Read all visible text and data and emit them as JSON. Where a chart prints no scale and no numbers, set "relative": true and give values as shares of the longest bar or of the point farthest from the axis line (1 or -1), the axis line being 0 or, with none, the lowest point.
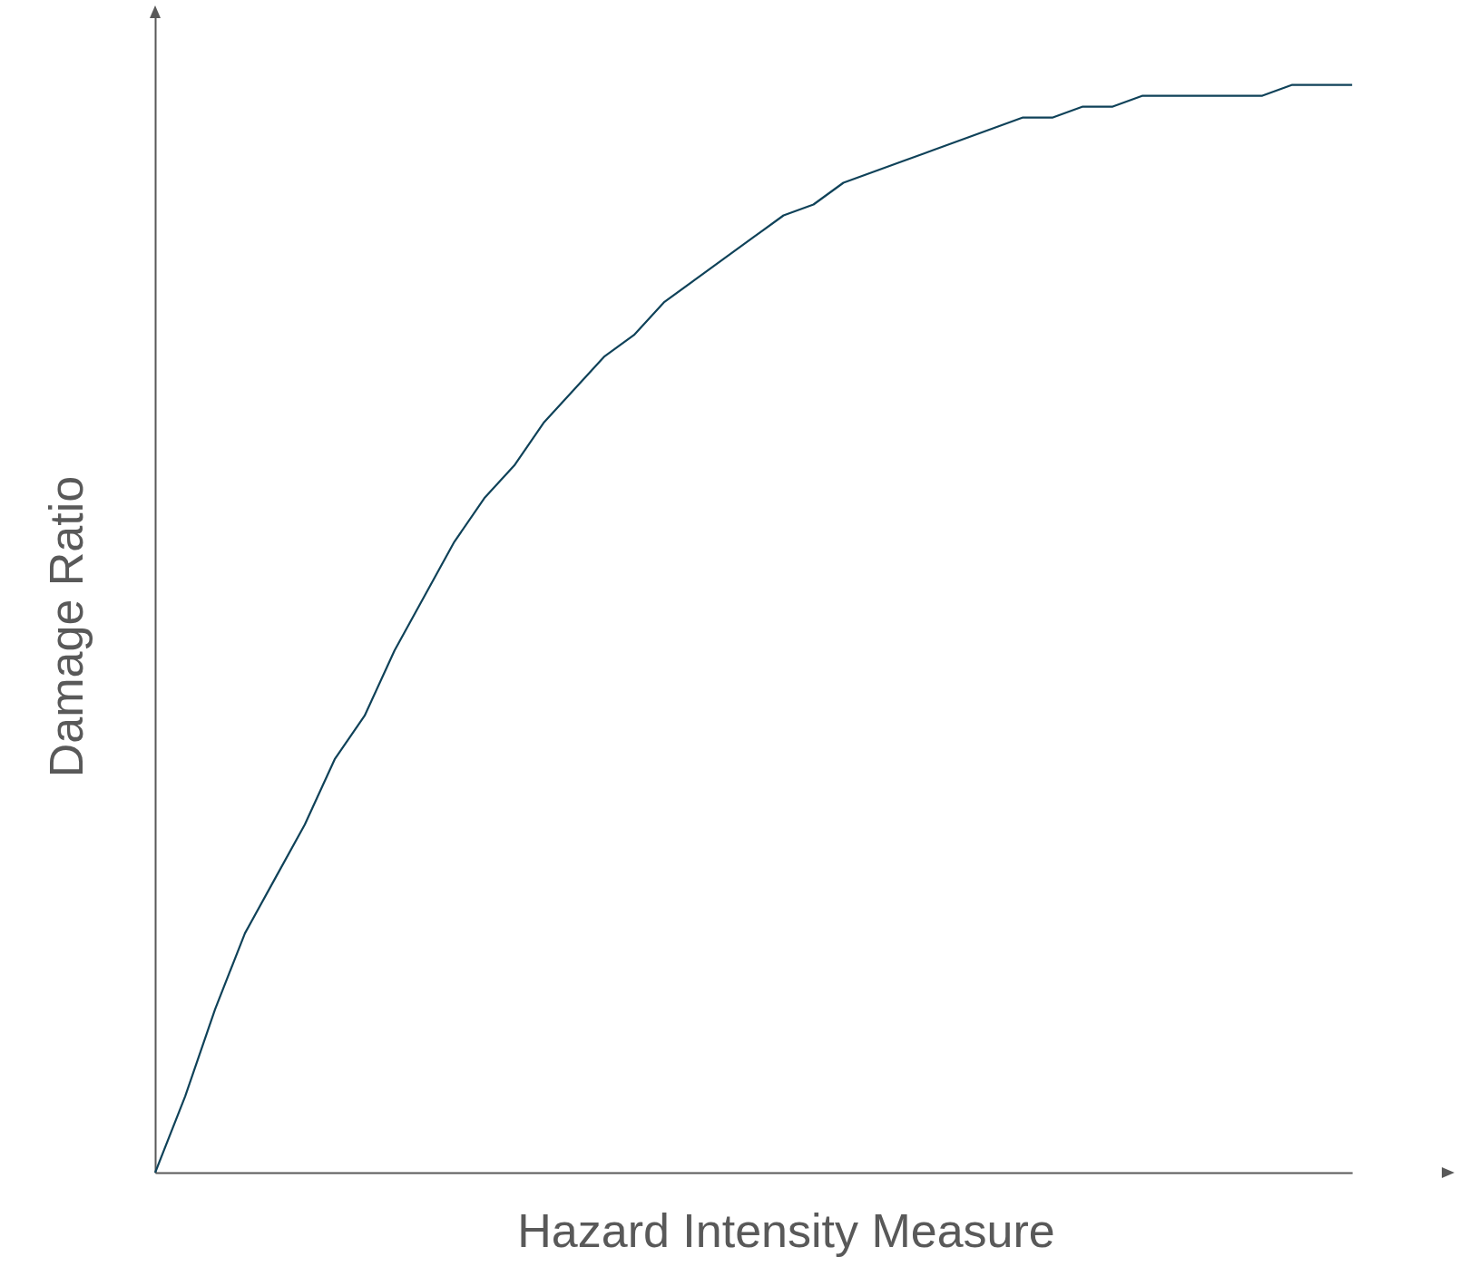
{
  "chart_data": {
    "type": "line",
    "relative": true,
    "xlabel": "Hazard Intensity Measure",
    "ylabel": "Damage Ratio",
    "marker": "none",
    "line_style": "solid",
    "categories": [
      null,
      null,
      null,
      null,
      null,
      null,
      null,
      null,
      null,
      null,
      null,
      null,
      null,
      null,
      null,
      null,
      null,
      null,
      null,
      null,
      null,
      null,
      null,
      null,
      null,
      null,
      null,
      null,
      null,
      null,
      null,
      null,
      null,
      null,
      null,
      null,
      null,
      null,
      null,
      null,
      null
    ],
    "series": [
      {
        "color": "#0f4259",
        "values": [
          0,
          0.07,
          0.15,
          0.22,
          0.27,
          0.32,
          0.38,
          0.42,
          0.48,
          0.53,
          0.58,
          0.62,
          0.65,
          0.69,
          0.72,
          0.75,
          0.77,
          0.8,
          0.82,
          0.84,
          0.86,
          0.88,
          0.89,
          0.91,
          0.92,
          0.93,
          0.94,
          0.95,
          0.96,
          0.97,
          0.97,
          0.98,
          0.98,
          0.99,
          0.99,
          0.99,
          0.99,
          0.99,
          1,
          1,
          1
        ]
      }
    ]
  }
}
